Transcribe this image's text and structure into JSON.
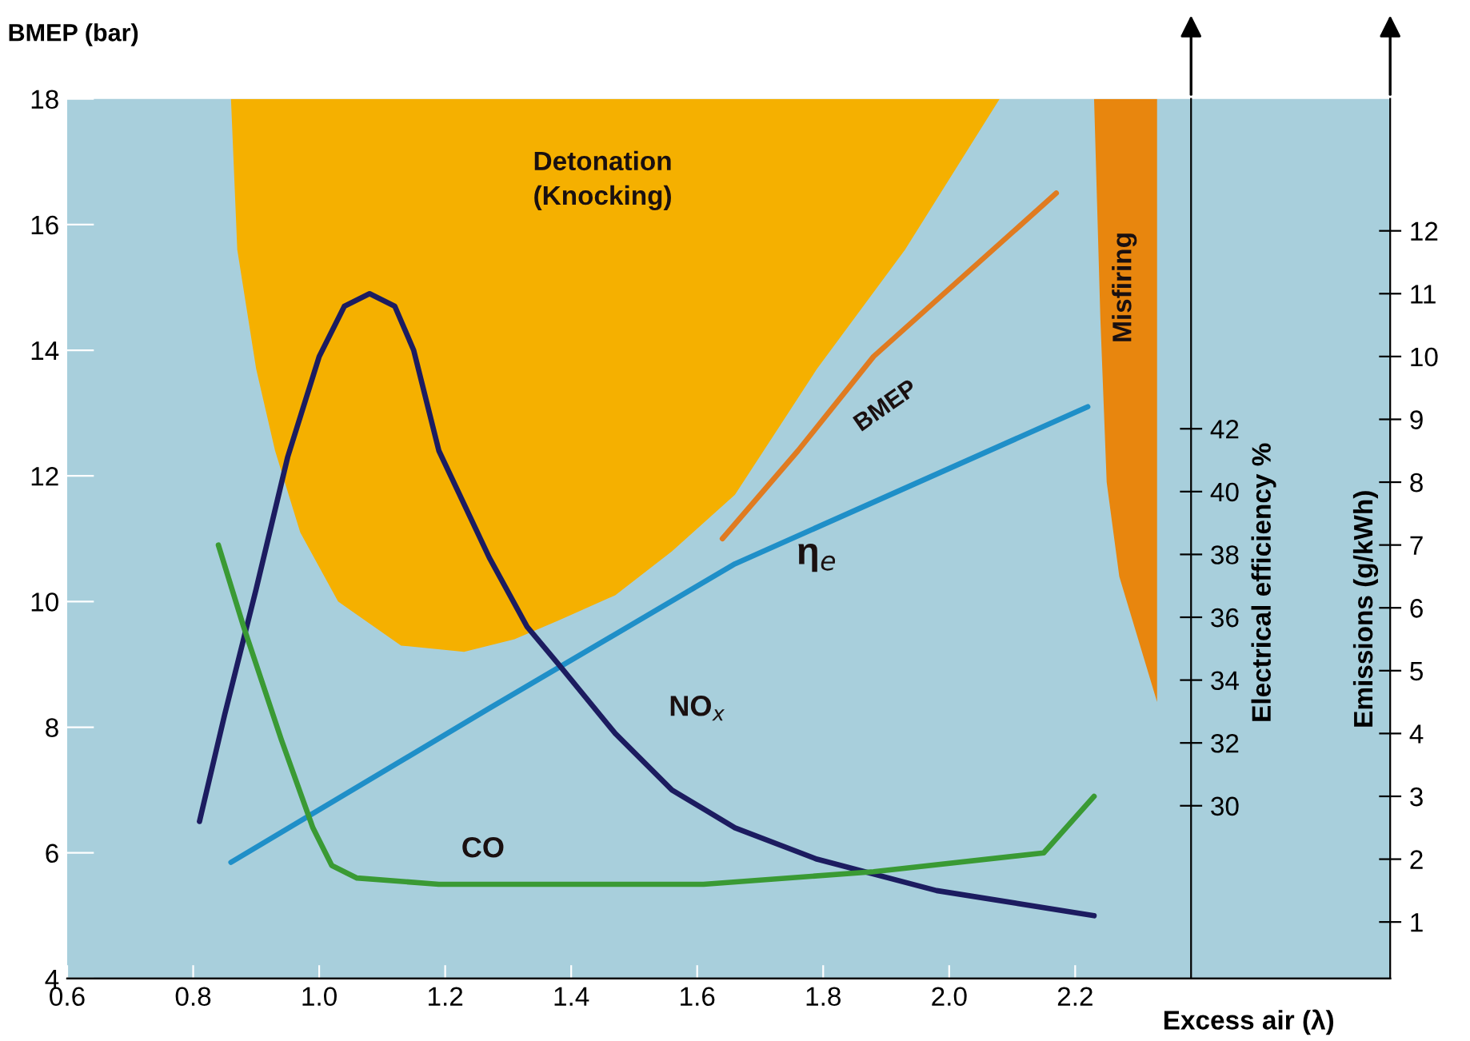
{
  "chart_data": {
    "type": "line",
    "ylabel": "BMEP (bar)",
    "y2label": "Electrical efficiency %",
    "y3label": "Emissions (g/kWh)",
    "xlabel": "Excess air (λ)",
    "xlim": [
      0.6,
      2.7
    ],
    "xticks": [
      0.6,
      0.8,
      {
        "value": 1,
        "label": "1.0"
      },
      1.2,
      1.4,
      1.6,
      1.8,
      {
        "value": 2,
        "label": "2.0"
      },
      2.2
    ],
    "ylim": [
      4,
      18
    ],
    "yticks": [
      4,
      6,
      8,
      10,
      12,
      14,
      16,
      18
    ],
    "y2lim": [
      24.5,
      52.5
    ],
    "y2ticks": [
      30,
      32,
      34,
      36,
      38,
      40,
      42
    ],
    "y3lim": [
      0.1,
      14.1
    ],
    "y3ticks": [
      1,
      2,
      3,
      4,
      5,
      6,
      7,
      8,
      9,
      10,
      11,
      12
    ],
    "grid": false,
    "legend": false,
    "marker": "none",
    "line_style": "solid",
    "series": [
      {
        "name": "Detonation\n(Knocking)",
        "type": "area",
        "color": "#f5b000",
        "x": [
          0.86,
          0.87,
          0.9,
          0.93,
          0.97,
          1.03,
          1.13,
          1.23,
          1.31,
          1.38,
          1.47,
          1.56,
          1.66,
          1.79,
          1.93,
          2.08
        ],
        "values": [
          18,
          15.6,
          13.7,
          12.4,
          11.1,
          10.0,
          9.3,
          9.2,
          9.4,
          9.7,
          10.1,
          10.8,
          11.7,
          13.7,
          15.6,
          18
        ]
      },
      {
        "name": "Misfiring",
        "type": "area",
        "color": "#e8860e",
        "x": [
          2.23,
          2.24,
          2.25,
          2.27,
          2.3,
          2.33,
          2.33
        ],
        "values": [
          18,
          14.5,
          11.9,
          10.4,
          9.4,
          8.4,
          18
        ]
      },
      {
        "name": "BMEP",
        "color": "#e07b20",
        "x": [
          1.64,
          1.76,
          1.88,
          2.17
        ],
        "values": [
          11.0,
          12.4,
          13.9,
          16.5
        ]
      },
      {
        "name": "η$_{e}$",
        "axis": "y2",
        "color": "#1f8fc8",
        "x": [
          0.86,
          1.27,
          1.66,
          2.22
        ],
        "values": [
          28.2,
          33.1,
          37.7,
          42.7
        ]
      },
      {
        "name": "NO$_{x}$",
        "axis": "y3",
        "color": "#1c1c60",
        "x": [
          0.81,
          0.85,
          0.9,
          0.95,
          1.0,
          1.04,
          1.08,
          1.12,
          1.15,
          1.19,
          1.27,
          1.33,
          1.38,
          1.47,
          1.56,
          1.66,
          1.79,
          1.98,
          2.23
        ],
        "values": [
          2.6,
          4.3,
          6.3,
          8.4,
          10.0,
          10.8,
          11.0,
          10.8,
          10.1,
          8.5,
          6.8,
          5.7,
          5.1,
          4.0,
          3.1,
          2.5,
          2.0,
          1.5,
          1.1
        ]
      },
      {
        "name": "CO",
        "axis": "y3",
        "color": "#3a9a34",
        "x": [
          0.84,
          0.88,
          0.94,
          0.99,
          1.02,
          1.06,
          1.19,
          1.38,
          1.61,
          1.88,
          2.15,
          2.23
        ],
        "values": [
          7.0,
          5.7,
          3.9,
          2.5,
          1.9,
          1.7,
          1.6,
          1.6,
          1.6,
          1.8,
          2.1,
          3.0
        ]
      }
    ]
  }
}
